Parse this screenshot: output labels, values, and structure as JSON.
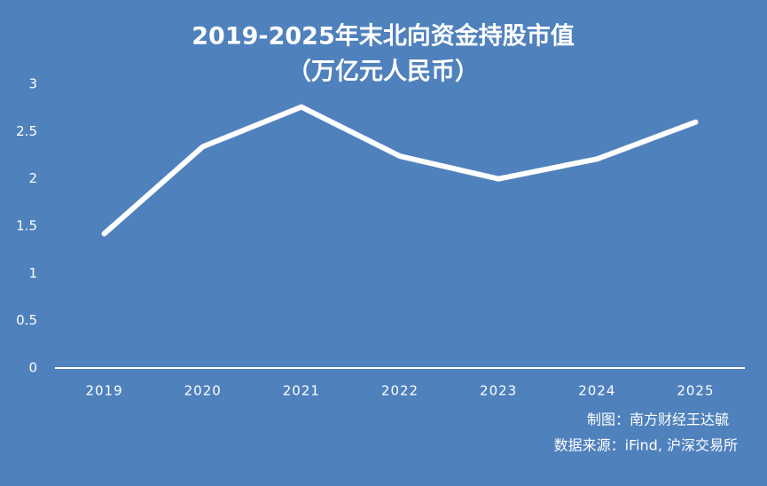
{
  "chart_data": {
    "type": "line",
    "title": "2019-2025年末北向资金持股市值",
    "subtitle": "（万亿元人民币）",
    "categories": [
      "2019",
      "2020",
      "2021",
      "2022",
      "2023",
      "2024",
      "2025"
    ],
    "values": [
      1.42,
      2.34,
      2.76,
      2.24,
      2.0,
      2.21,
      2.6
    ],
    "color": "#ffffff",
    "ylim": [
      0,
      3
    ],
    "yticks": [
      0,
      0.5,
      1,
      1.5,
      2,
      2.5,
      3
    ],
    "drop_lines": true,
    "credit": "制图：南方财经王达毓",
    "source": "数据来源：iFind, 沪深交易所"
  }
}
